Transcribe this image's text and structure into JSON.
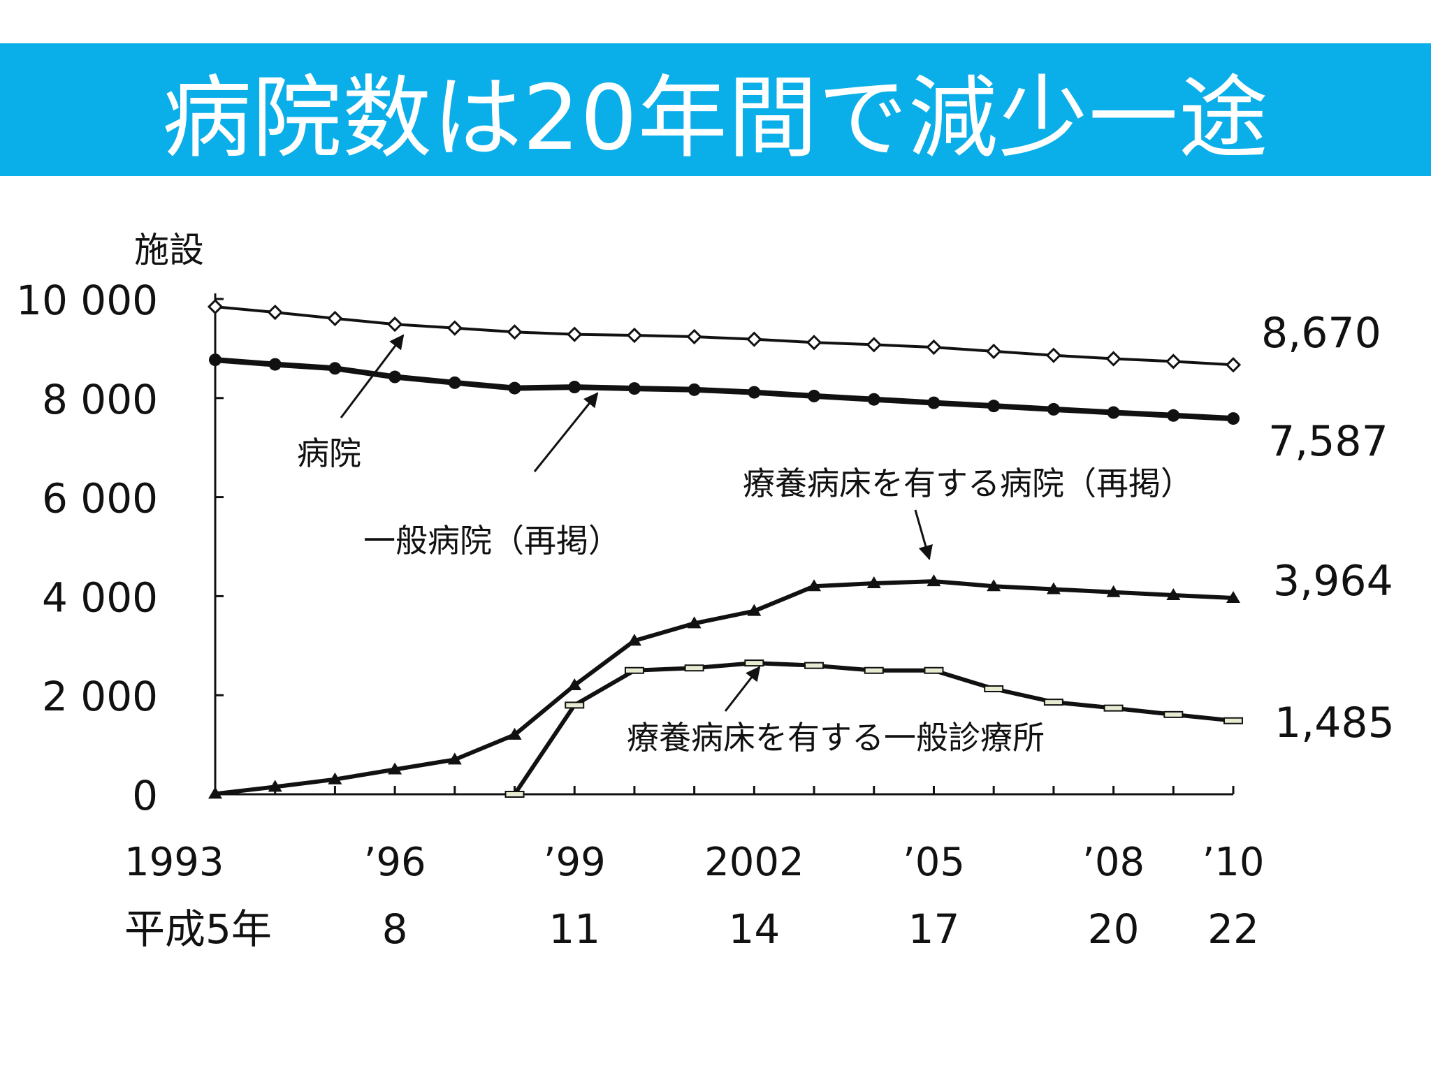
{
  "slide": {
    "title": "病院数は20年間で減少一途",
    "title_bar_color": "#0aaee8"
  },
  "chart_data": {
    "type": "line",
    "ylabel": "施設",
    "ylim": [
      0,
      10000
    ],
    "yticks": [
      {
        "value": 0,
        "label": "0"
      },
      {
        "value": 2000,
        "label": "2 000"
      },
      {
        "value": 4000,
        "label": "4 000"
      },
      {
        "value": 6000,
        "label": "6 000"
      },
      {
        "value": 8000,
        "label": "8 000"
      },
      {
        "value": 10000,
        "label": "10 000"
      }
    ],
    "x": [
      1993,
      1994,
      1995,
      1996,
      1997,
      1998,
      1999,
      2000,
      2001,
      2002,
      2003,
      2004,
      2005,
      2006,
      2007,
      2008,
      2009,
      2010
    ],
    "xticks": [
      {
        "year": 1993,
        "label": "1993",
        "label2": "平成5年"
      },
      {
        "year": 1996,
        "label": "’96",
        "label2": "8"
      },
      {
        "year": 1999,
        "label": "’99",
        "label2": "11"
      },
      {
        "year": 2002,
        "label": "2002",
        "label2": "14"
      },
      {
        "year": 2005,
        "label": "’05",
        "label2": "17"
      },
      {
        "year": 2008,
        "label": "’08",
        "label2": "20"
      },
      {
        "year": 2010,
        "label": "’10",
        "label2": "22"
      }
    ],
    "series": [
      {
        "name": "病院",
        "marker": "diamond",
        "values": [
          9844,
          9731,
          9606,
          9490,
          9413,
          9333,
          9286,
          9266,
          9239,
          9187,
          9122,
          9077,
          9026,
          8943,
          8862,
          8794,
          8739,
          8670
        ],
        "end_label": "8,670"
      },
      {
        "name": "一般病院（再掲）",
        "marker": "circle",
        "values": [
          8772,
          8680,
          8600,
          8427,
          8310,
          8200,
          8222,
          8193,
          8169,
          8116,
          8041,
          7973,
          7904,
          7840,
          7773,
          7708,
          7648,
          7587
        ],
        "end_label": "7,587"
      },
      {
        "name": "療養病床を有する病院（再掲）",
        "marker": "triangle",
        "values": [
          10,
          150,
          300,
          500,
          700,
          1200,
          2200,
          3100,
          3450,
          3700,
          4200,
          4260,
          4300,
          4200,
          4140,
          4080,
          4020,
          3964
        ],
        "end_label": "3,964"
      },
      {
        "name": "療養病床を有する一般診療所",
        "marker": "dash",
        "start_index": 5,
        "values": [
          null,
          null,
          null,
          null,
          null,
          0,
          1800,
          2500,
          2550,
          2650,
          2600,
          2500,
          2500,
          2130,
          1860,
          1740,
          1610,
          1485
        ],
        "end_label": "1,485"
      }
    ],
    "annotations": [
      {
        "text": "病院",
        "points_to": "病院"
      },
      {
        "text": "一般病院（再掲）",
        "points_to": "一般病院（再掲）"
      },
      {
        "text": "療養病床を有する病院（再掲）",
        "points_to": "療養病床を有する病院（再掲）"
      },
      {
        "text": "療養病床を有する一般診療所",
        "points_to": "療養病床を有する一般診療所"
      }
    ],
    "grid": false,
    "legend": "none"
  }
}
